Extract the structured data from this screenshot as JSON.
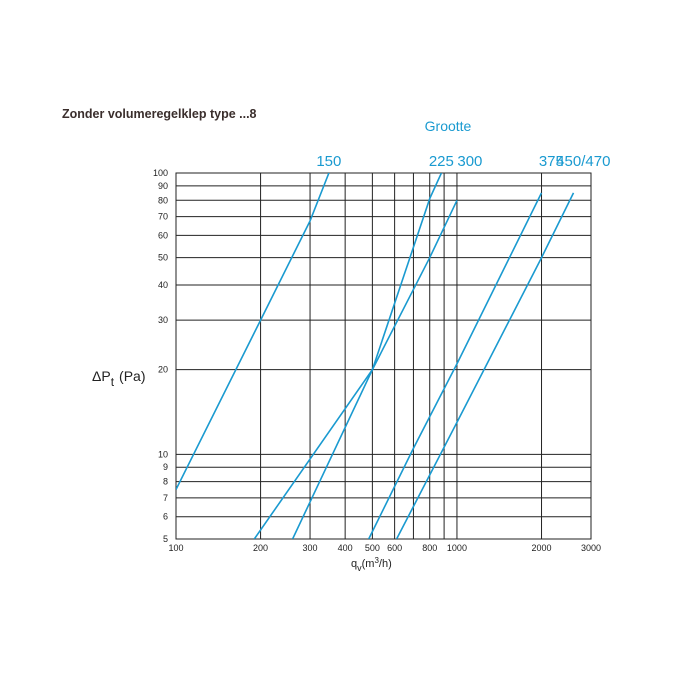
{
  "title": "Zonder volumeregelklep type ...8",
  "chart_data": {
    "type": "line",
    "xscale": "log",
    "yscale": "log",
    "xlim": [
      100,
      3000
    ],
    "ylim": [
      5,
      100
    ],
    "grid": true,
    "legend_title": "Grootte",
    "color": "#1a9ad0",
    "ylabel": {
      "delta": "Δ",
      "p": "P",
      "sub": "t",
      "unit": "(Pa)"
    },
    "xlabel": {
      "q": "q",
      "sub": "v",
      "unit_pre": "(m",
      "sup": "3",
      "unit_post": "/h)"
    },
    "x_ticks": [
      {
        "value": 100,
        "label": "100"
      },
      {
        "value": 200,
        "label": "200"
      },
      {
        "value": 300,
        "label": "300"
      },
      {
        "value": 400,
        "label": "400"
      },
      {
        "value": 500,
        "label": "500"
      },
      {
        "value": 600,
        "label": "600"
      },
      {
        "value": 700,
        "label": ""
      },
      {
        "value": 800,
        "label": "800"
      },
      {
        "value": 900,
        "label": ""
      },
      {
        "value": 1000,
        "label": "1000"
      },
      {
        "value": 2000,
        "label": "2000"
      },
      {
        "value": 3000,
        "label": "3000"
      }
    ],
    "y_ticks": [
      {
        "value": 5,
        "label": "5"
      },
      {
        "value": 6,
        "label": "6"
      },
      {
        "value": 7,
        "label": "7"
      },
      {
        "value": 8,
        "label": "8"
      },
      {
        "value": 9,
        "label": "9"
      },
      {
        "value": 10,
        "label": "10"
      },
      {
        "value": 20,
        "label": "20"
      },
      {
        "value": 30,
        "label": "30"
      },
      {
        "value": 40,
        "label": "40"
      },
      {
        "value": 50,
        "label": "50"
      },
      {
        "value": 60,
        "label": "60"
      },
      {
        "value": 70,
        "label": "70"
      },
      {
        "value": 80,
        "label": "80"
      },
      {
        "value": 90,
        "label": "90"
      },
      {
        "value": 100,
        "label": "100"
      }
    ],
    "series": [
      {
        "name": "150",
        "x": [
          100,
          200,
          300,
          350
        ],
        "y": [
          7.5,
          30,
          67.5,
          100
        ]
      },
      {
        "name": "225",
        "x": [
          190,
          500,
          800,
          880
        ],
        "y": [
          5,
          20,
          81,
          100
        ]
      },
      {
        "name": "300",
        "x": [
          260,
          500,
          800,
          1000
        ],
        "y": [
          5,
          20,
          50,
          80
        ]
      },
      {
        "name": "375",
        "x": [
          485,
          700,
          1000,
          2000
        ],
        "y": [
          5,
          10.5,
          21,
          85
        ]
      },
      {
        "name": "450/470",
        "x": [
          610,
          1000,
          2000,
          2600
        ],
        "y": [
          5,
          13,
          50,
          85
        ]
      }
    ]
  }
}
